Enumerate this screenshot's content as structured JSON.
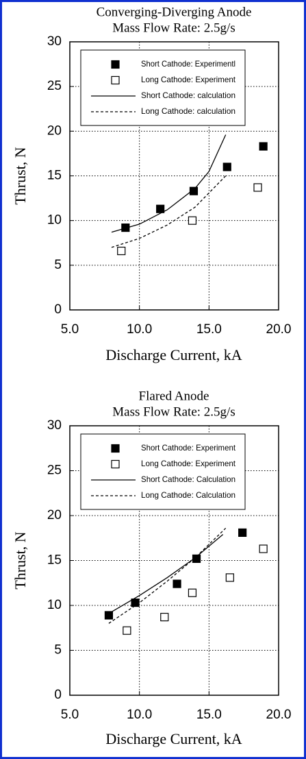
{
  "chart_data": [
    {
      "type": "scatter",
      "title": "Converging-Diverging Anode",
      "subtitle": "Mass Flow Rate: 2.5g/s",
      "x_label": "Discharge Current, kA",
      "y_label": "Thrust, N",
      "xlim": [
        5,
        20
      ],
      "ylim": [
        0,
        30
      ],
      "xticks": [
        {
          "value": 5,
          "label": "5.0"
        },
        {
          "value": 10,
          "label": "10.0"
        },
        {
          "value": 15,
          "label": "15.0"
        },
        {
          "value": 20,
          "label": "20.0"
        }
      ],
      "yticks": [
        0,
        5,
        10,
        15,
        20,
        25,
        30
      ],
      "grid": true,
      "legend": "upper-left",
      "series": [
        {
          "name": "Short Cathode: Experimentl",
          "marker": "filled-square",
          "color": "#000000",
          "x": [
            9.0,
            11.5,
            13.9,
            16.3,
            18.9
          ],
          "values": [
            9.2,
            11.3,
            13.3,
            16.0,
            18.3
          ]
        },
        {
          "name": "Long Cathode: Experiment",
          "marker": "open-square",
          "color": "#000000",
          "x": [
            8.7,
            13.8,
            18.5
          ],
          "values": [
            6.6,
            10.0,
            13.7
          ]
        },
        {
          "name": "Short Cathode: calculation",
          "marker": "solid-line",
          "color": "#000000",
          "x": [
            8.0,
            10.0,
            12.0,
            14.0,
            15.0,
            16.2
          ],
          "values": [
            8.7,
            9.6,
            11.2,
            13.6,
            15.5,
            19.6
          ]
        },
        {
          "name": "Long Cathode: calculation",
          "marker": "dashed-line",
          "color": "#000000",
          "x": [
            8.0,
            10.0,
            12.0,
            14.0,
            16.2
          ],
          "values": [
            7.0,
            8.0,
            9.5,
            11.5,
            15.0
          ]
        }
      ]
    },
    {
      "type": "scatter",
      "title": "Flared Anode",
      "subtitle": "Mass Flow Rate: 2.5g/s",
      "x_label": "Discharge Current, kA",
      "y_label": "Thrust, N",
      "xlim": [
        5,
        20
      ],
      "ylim": [
        0,
        30
      ],
      "xticks": [
        {
          "value": 5,
          "label": "5.0"
        },
        {
          "value": 10,
          "label": "10.0"
        },
        {
          "value": 15,
          "label": "15.0"
        },
        {
          "value": 20,
          "label": "20.0"
        }
      ],
      "yticks": [
        0,
        5,
        10,
        15,
        20,
        25,
        30
      ],
      "grid": true,
      "legend": "upper-left",
      "series": [
        {
          "name": "Short Cathode: Experiment",
          "marker": "filled-square",
          "color": "#000000",
          "x": [
            7.8,
            9.7,
            12.7,
            14.1,
            17.4
          ],
          "values": [
            8.9,
            10.3,
            12.4,
            15.2,
            18.1
          ]
        },
        {
          "name": "Long Cathode: Experiment",
          "marker": "open-square",
          "color": "#000000",
          "x": [
            9.1,
            11.8,
            13.8,
            16.5,
            18.9
          ],
          "values": [
            7.2,
            8.7,
            11.4,
            13.1,
            16.3
          ]
        },
        {
          "name": "Short Cathode: Calculation",
          "marker": "solid-line",
          "color": "#000000",
          "x": [
            7.8,
            10.0,
            12.0,
            14.0,
            16.0
          ],
          "values": [
            9.1,
            11.1,
            13.1,
            15.3,
            17.9
          ]
        },
        {
          "name": "Long Cathode: Calculation",
          "marker": "dashed-line",
          "color": "#000000",
          "x": [
            7.8,
            10.0,
            12.0,
            14.0,
            16.2
          ],
          "values": [
            8.0,
            10.3,
            12.7,
            15.3,
            18.6
          ]
        }
      ]
    }
  ]
}
